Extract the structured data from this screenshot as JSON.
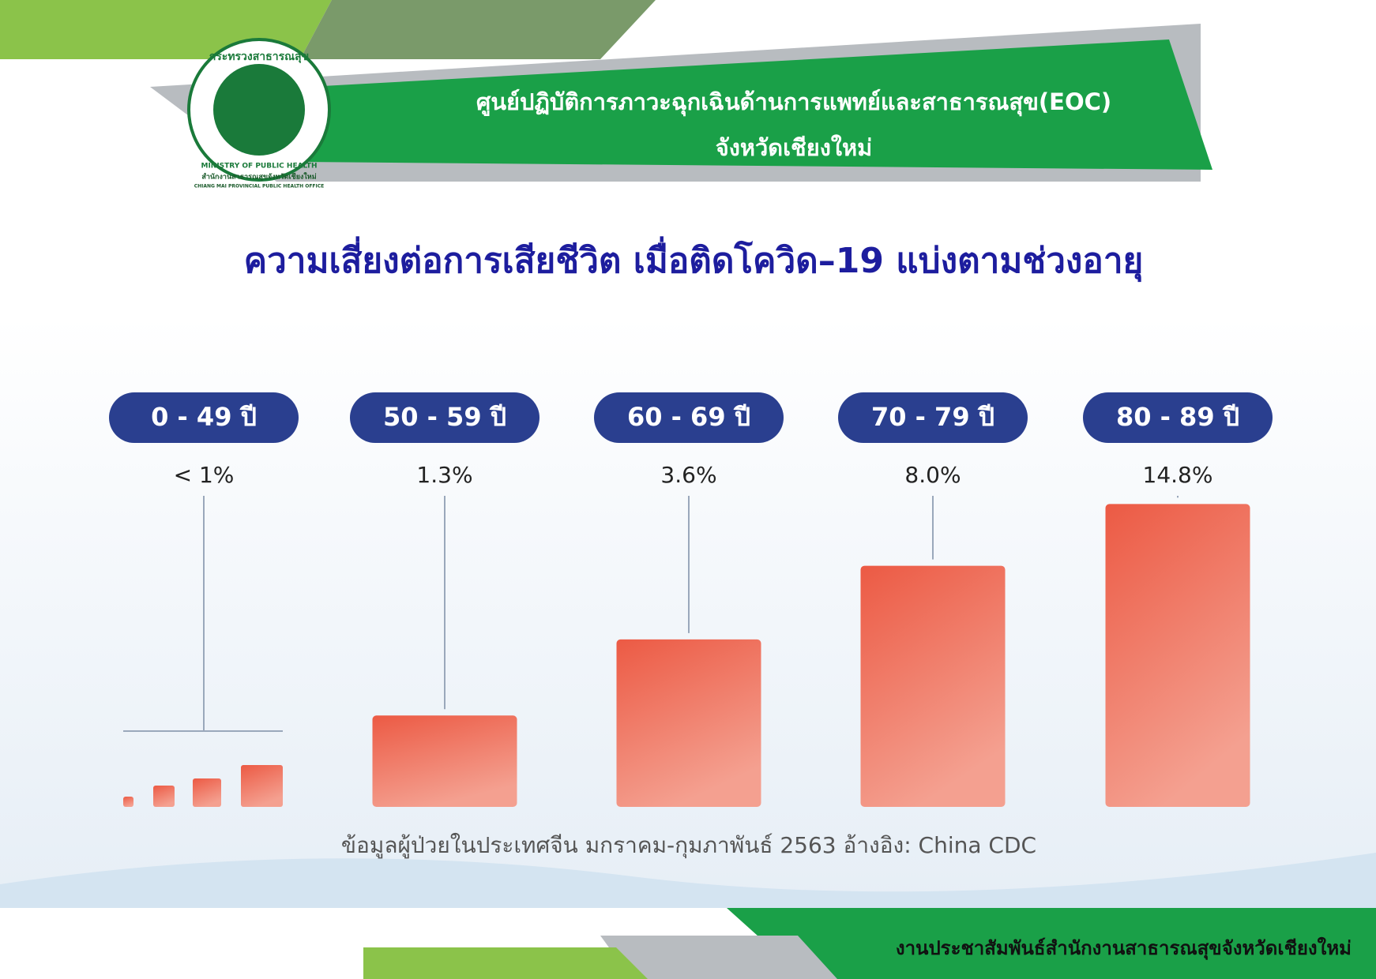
{
  "header": {
    "logo_text_th": "กระทรวงสาธารณสุข",
    "logo_text_en": "MINISTRY OF PUBLIC HEALTH",
    "logo_caption_th": "สำนักงานสาธารณสุขจังหวัดเชียงใหม่",
    "logo_caption_en": "CHIANG MAI PROVINCIAL PUBLIC HEALTH OFFICE",
    "line1": "ศูนย์ปฏิบัติการภาวะฉุกเฉินด้านการแพทย์และสาธารณสุข(EOC)",
    "line2": "จังหวัดเชียงใหม่"
  },
  "chart_data": {
    "type": "bar",
    "title": "ความเสี่ยงต่อการเสียชีวิต เมื่อติดโควิด–19 แบ่งตามช่วงอายุ",
    "categories": [
      "0 - 49 ปี",
      "50 - 59 ปี",
      "60 - 69 ปี",
      "70 - 79 ปี",
      "80 - 89 ปี"
    ],
    "values": [
      1,
      1.3,
      3.6,
      8.0,
      14.8
    ],
    "value_labels": [
      "< 1%",
      "1.3%",
      "3.6%",
      "8.0%",
      "14.8%"
    ],
    "color": "#ec5a44",
    "source": "ข้อมูลผู้ป่วยในประเทศจีน มกราคม-กุมภาพันธ์ 2563 อ้างอิง: China CDC"
  },
  "footer": {
    "text": "งานประชาสัมพันธ์สำนักงานสาธารณสุขจังหวัดเชียงใหม่"
  }
}
